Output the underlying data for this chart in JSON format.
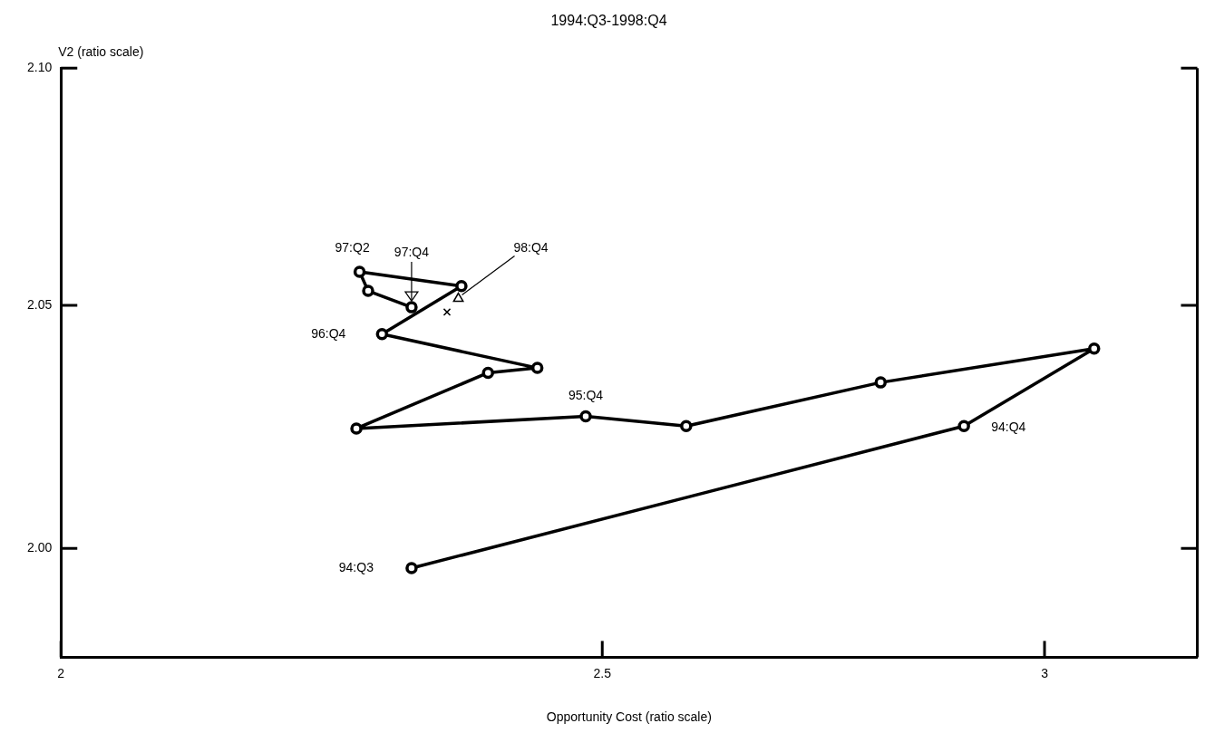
{
  "chart_data": {
    "type": "line",
    "title": "1994:Q3-1998:Q4",
    "xlabel": "Opportunity Cost (ratio scale)",
    "ylabel": "V2 (ratio scale)",
    "log": "xy",
    "grid": false,
    "legend": false,
    "marker": "circle",
    "line_style": "solid",
    "xlim": [
      2,
      3.195
    ],
    "xticks": [
      2,
      2.5,
      3
    ],
    "ylim": [
      1.978,
      2.1
    ],
    "yticks": [
      {
        "value": 2.0,
        "label": "2.00"
      },
      {
        "value": 2.05,
        "label": "2.05"
      },
      {
        "value": 2.1,
        "label": "2.10"
      }
    ],
    "series": [
      {
        "type": "line",
        "color": "#000000",
        "x": [
          2.311,
          2.902,
          3.062,
          2.804,
          2.588,
          2.483,
          2.259,
          2.385,
          2.434,
          2.283,
          2.359,
          2.262,
          2.27,
          2.311
        ],
        "values": [
          1.996,
          2.025,
          2.041,
          2.034,
          2.025,
          2.027,
          2.0245,
          2.036,
          2.037,
          2.044,
          2.054,
          2.057,
          2.053,
          2.0496
        ]
      },
      {
        "type": "scatter",
        "color": "#000000",
        "marker": "triangle",
        "x": [
          2.356
        ],
        "values": [
          2.0514
        ]
      },
      {
        "type": "scatter",
        "color": "#000000",
        "marker": "cross",
        "x": [
          2.345
        ],
        "values": [
          2.0486
        ]
      }
    ],
    "annotations": [
      {
        "text": "94:Q3",
        "x": 2.311,
        "y": 1.996
      },
      {
        "text": "94:Q4",
        "x": 2.902,
        "y": 2.025
      },
      {
        "text": "95:Q4",
        "x": 2.483,
        "y": 2.027
      },
      {
        "text": "96:Q4",
        "x": 2.283,
        "y": 2.044
      },
      {
        "text": "97:Q2",
        "x": 2.262,
        "y": 2.057
      },
      {
        "text": "97:Q4",
        "x": 2.311,
        "y": 2.0496
      },
      {
        "text": "98:Q4",
        "x": 2.356,
        "y": 2.0514
      }
    ]
  }
}
